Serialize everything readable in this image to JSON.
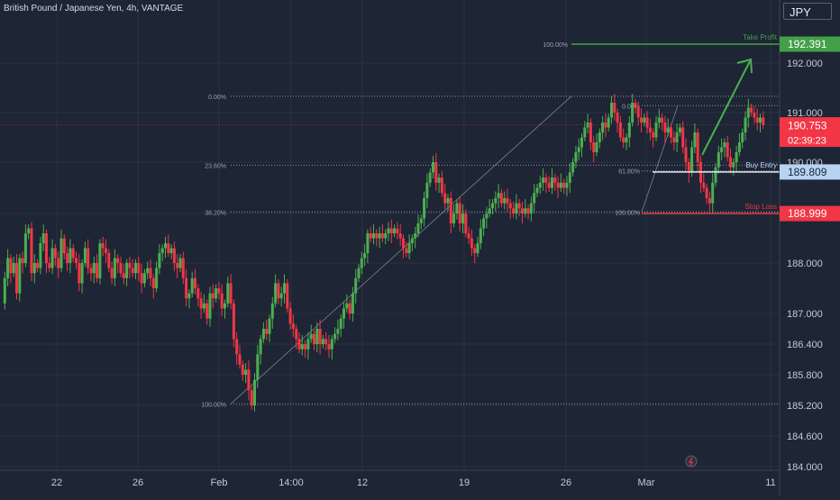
{
  "header": {
    "title": "British Pound / Japanese Yen, 4h, VANTAGE",
    "currency": "JPY"
  },
  "colors": {
    "background": "#1e2535",
    "grid": "#2b3242",
    "bull": "#4caf50",
    "bear": "#f23645",
    "take_profit": "#43a047",
    "entry": "#b6d4f2",
    "stop_loss": "#f23645",
    "fib_line": "#8f96a3"
  },
  "chart_data": {
    "type": "candlestick",
    "title": "British Pound / Japanese Yen, 4h, VANTAGE",
    "y_unit": "JPY",
    "y_ticks": [
      "192.000",
      "191.000",
      "190.000",
      "189.000",
      "188.000",
      "187.000",
      "186.400",
      "185.800",
      "185.200",
      "184.600",
      "184.000"
    ],
    "x_ticks": [
      "22",
      "26",
      "Feb",
      "14:00",
      "12",
      "19",
      "26",
      "Mar",
      "11"
    ],
    "fib_levels": [
      {
        "label": "0.00%",
        "price": 191.33
      },
      {
        "label": "23.60%",
        "price": 189.94
      },
      {
        "label": "38.20%",
        "price": 189.03
      },
      {
        "label": "100.00%",
        "price": 185.23
      }
    ],
    "fib_levels_2": [
      {
        "label": "100.00%",
        "price": 192.39
      },
      {
        "label": "0.00%",
        "price": 191.14
      },
      {
        "label": "61.80%",
        "price": 189.83
      },
      {
        "label": "100.00%",
        "price": 189.03
      }
    ],
    "price_labels": [
      {
        "name": "Take Profit",
        "value": "192.391",
        "color": "#43a047"
      },
      {
        "name": "Buy Entry",
        "value": "189.809",
        "color": "#b6d4f2"
      },
      {
        "name": "Stop Loss",
        "value": "188.999",
        "color": "#f23645"
      }
    ],
    "current_price": {
      "value": "190.753",
      "countdown": "02:39:23"
    },
    "series": [
      {
        "points": [
          [
            0,
            187.2
          ],
          [
            3,
            187.7
          ],
          [
            6,
            188.1
          ],
          [
            9,
            187.8
          ],
          [
            12,
            188.0
          ],
          [
            15,
            187.4
          ],
          [
            18,
            188.1
          ],
          [
            21,
            188.0
          ],
          [
            24,
            188.6
          ],
          [
            27,
            188.7
          ],
          [
            30,
            187.8
          ],
          [
            33,
            188.0
          ],
          [
            36,
            187.9
          ],
          [
            39,
            188.4
          ],
          [
            42,
            188.6
          ],
          [
            45,
            188.0
          ],
          [
            48,
            187.9
          ],
          [
            51,
            188.3
          ],
          [
            54,
            188.1
          ],
          [
            57,
            187.9
          ],
          [
            60,
            188.5
          ],
          [
            63,
            188.2
          ],
          [
            66,
            188.0
          ],
          [
            69,
            188.3
          ],
          [
            72,
            188.1
          ],
          [
            75,
            188.0
          ],
          [
            78,
            187.6
          ],
          [
            81,
            188.0
          ],
          [
            84,
            188.3
          ],
          [
            87,
            187.9
          ],
          [
            90,
            187.8
          ],
          [
            93,
            188.0
          ],
          [
            96,
            187.7
          ],
          [
            99,
            188.4
          ],
          [
            102,
            188.3
          ],
          [
            105,
            188.2
          ],
          [
            108,
            187.9
          ],
          [
            111,
            187.7
          ],
          [
            114,
            188.1
          ],
          [
            117,
            188.0
          ],
          [
            120,
            187.8
          ],
          [
            123,
            187.7
          ],
          [
            126,
            188.0
          ],
          [
            129,
            187.9
          ],
          [
            132,
            187.8
          ],
          [
            135,
            188.0
          ],
          [
            138,
            187.8
          ],
          [
            141,
            187.6
          ],
          [
            144,
            187.8
          ],
          [
            147,
            187.9
          ],
          [
            150,
            187.7
          ],
          [
            153,
            187.5
          ],
          [
            156,
            187.9
          ],
          [
            159,
            188.2
          ],
          [
            162,
            188.3
          ],
          [
            165,
            188.4
          ],
          [
            168,
            188.2
          ],
          [
            171,
            188.3
          ],
          [
            174,
            188.0
          ],
          [
            177,
            187.9
          ],
          [
            180,
            188.1
          ],
          [
            183,
            187.7
          ],
          [
            186,
            187.3
          ],
          [
            189,
            187.4
          ],
          [
            192,
            187.7
          ],
          [
            195,
            187.5
          ],
          [
            198,
            187.3
          ],
          [
            201,
            187.1
          ],
          [
            204,
            187.2
          ],
          [
            207,
            186.9
          ],
          [
            210,
            187.4
          ],
          [
            213,
            187.3
          ],
          [
            216,
            187.5
          ],
          [
            219,
            187.4
          ],
          [
            222,
            187.1
          ],
          [
            225,
            187.2
          ],
          [
            228,
            187.6
          ],
          [
            231,
            187.2
          ],
          [
            234,
            186.5
          ],
          [
            237,
            186.2
          ],
          [
            240,
            186.0
          ],
          [
            243,
            185.8
          ],
          [
            246,
            185.9
          ],
          [
            249,
            185.5
          ],
          [
            252,
            185.2
          ],
          [
            255,
            185.7
          ],
          [
            258,
            186.2
          ],
          [
            261,
            186.5
          ],
          [
            264,
            186.7
          ],
          [
            267,
            186.6
          ],
          [
            270,
            186.9
          ],
          [
            273,
            187.2
          ],
          [
            276,
            187.6
          ],
          [
            279,
            187.3
          ],
          [
            282,
            187.4
          ],
          [
            285,
            187.6
          ],
          [
            288,
            187.1
          ],
          [
            291,
            186.8
          ],
          [
            294,
            186.7
          ],
          [
            297,
            186.5
          ],
          [
            300,
            186.3
          ],
          [
            303,
            186.4
          ],
          [
            306,
            186.3
          ],
          [
            309,
            186.5
          ],
          [
            312,
            186.6
          ],
          [
            315,
            186.4
          ],
          [
            318,
            186.7
          ],
          [
            321,
            186.4
          ],
          [
            324,
            186.5
          ],
          [
            327,
            186.4
          ],
          [
            330,
            186.3
          ],
          [
            333,
            186.5
          ],
          [
            336,
            186.6
          ],
          [
            339,
            186.7
          ],
          [
            342,
            186.9
          ],
          [
            345,
            187.1
          ],
          [
            348,
            187.2
          ],
          [
            351,
            187.0
          ],
          [
            354,
            187.4
          ],
          [
            357,
            187.7
          ],
          [
            360,
            187.9
          ],
          [
            363,
            188.1
          ],
          [
            366,
            188.2
          ],
          [
            369,
            188.6
          ],
          [
            372,
            188.5
          ],
          [
            375,
            188.6
          ],
          [
            378,
            188.5
          ],
          [
            381,
            188.6
          ],
          [
            384,
            188.5
          ],
          [
            387,
            188.6
          ],
          [
            390,
            188.7
          ],
          [
            393,
            188.6
          ],
          [
            396,
            188.7
          ],
          [
            399,
            188.6
          ],
          [
            402,
            188.5
          ],
          [
            405,
            188.3
          ],
          [
            408,
            188.2
          ],
          [
            411,
            188.4
          ],
          [
            414,
            188.5
          ],
          [
            417,
            188.6
          ],
          [
            420,
            188.8
          ],
          [
            423,
            188.9
          ],
          [
            426,
            189.3
          ],
          [
            429,
            189.6
          ],
          [
            432,
            189.8
          ],
          [
            435,
            190.0
          ],
          [
            438,
            189.6
          ],
          [
            441,
            189.7
          ],
          [
            444,
            189.4
          ],
          [
            447,
            189.2
          ],
          [
            450,
            189.3
          ],
          [
            453,
            188.8
          ],
          [
            456,
            189.0
          ],
          [
            459,
            189.2
          ],
          [
            462,
            188.8
          ],
          [
            465,
            189.0
          ],
          [
            468,
            188.6
          ],
          [
            471,
            188.5
          ],
          [
            474,
            188.3
          ],
          [
            477,
            188.2
          ],
          [
            480,
            188.4
          ],
          [
            483,
            188.7
          ],
          [
            486,
            188.9
          ],
          [
            489,
            189.0
          ],
          [
            492,
            189.1
          ],
          [
            495,
            189.2
          ],
          [
            498,
            189.3
          ],
          [
            501,
            189.4
          ],
          [
            504,
            189.2
          ],
          [
            507,
            189.3
          ],
          [
            510,
            189.2
          ],
          [
            513,
            189.1
          ],
          [
            516,
            189.0
          ],
          [
            519,
            189.2
          ],
          [
            522,
            189.1
          ],
          [
            525,
            189.0
          ],
          [
            528,
            189.1
          ],
          [
            531,
            189.0
          ],
          [
            534,
            189.2
          ],
          [
            537,
            189.4
          ],
          [
            540,
            189.5
          ],
          [
            543,
            189.6
          ],
          [
            546,
            189.7
          ],
          [
            549,
            189.6
          ],
          [
            552,
            189.5
          ],
          [
            555,
            189.7
          ],
          [
            558,
            189.6
          ],
          [
            561,
            189.5
          ],
          [
            564,
            189.6
          ],
          [
            567,
            189.5
          ],
          [
            570,
            189.6
          ],
          [
            573,
            189.8
          ],
          [
            576,
            190.0
          ],
          [
            579,
            190.2
          ],
          [
            582,
            190.3
          ],
          [
            585,
            190.5
          ],
          [
            588,
            190.7
          ],
          [
            591,
            190.8
          ],
          [
            594,
            190.4
          ],
          [
            597,
            190.2
          ],
          [
            600,
            190.4
          ],
          [
            603,
            190.6
          ],
          [
            606,
            190.8
          ],
          [
            609,
            190.7
          ],
          [
            612,
            190.9
          ],
          [
            615,
            191.2
          ],
          [
            618,
            191.0
          ],
          [
            621,
            190.8
          ],
          [
            624,
            190.5
          ],
          [
            627,
            190.4
          ],
          [
            630,
            190.5
          ],
          [
            633,
            190.8
          ],
          [
            636,
            191.2
          ],
          [
            639,
            191.1
          ],
          [
            642,
            190.9
          ],
          [
            645,
            190.8
          ],
          [
            648,
            190.9
          ],
          [
            651,
            190.7
          ],
          [
            654,
            190.6
          ],
          [
            657,
            190.5
          ],
          [
            660,
            190.8
          ],
          [
            663,
            190.9
          ],
          [
            666,
            190.8
          ],
          [
            669,
            190.6
          ],
          [
            672,
            190.7
          ],
          [
            675,
            190.5
          ],
          [
            678,
            190.4
          ],
          [
            681,
            190.6
          ],
          [
            684,
            190.7
          ],
          [
            687,
            190.3
          ],
          [
            690,
            190.0
          ],
          [
            693,
            189.8
          ],
          [
            696,
            190.3
          ],
          [
            699,
            190.6
          ],
          [
            702,
            190.0
          ],
          [
            705,
            189.6
          ],
          [
            708,
            189.5
          ],
          [
            711,
            189.3
          ],
          [
            714,
            189.2
          ],
          [
            717,
            189.6
          ],
          [
            720,
            189.9
          ],
          [
            723,
            190.2
          ],
          [
            726,
            190.3
          ],
          [
            729,
            190.4
          ],
          [
            732,
            190.1
          ],
          [
            735,
            189.9
          ],
          [
            738,
            190.0
          ],
          [
            741,
            190.2
          ],
          [
            744,
            190.4
          ],
          [
            747,
            190.6
          ],
          [
            750,
            190.9
          ],
          [
            753,
            191.1
          ],
          [
            756,
            191.0
          ],
          [
            759,
            190.9
          ],
          [
            762,
            190.8
          ],
          [
            765,
            190.9
          ],
          [
            768,
            190.75
          ]
        ]
      }
    ],
    "ylim": [
      184.0,
      192.8
    ],
    "grid": true
  }
}
